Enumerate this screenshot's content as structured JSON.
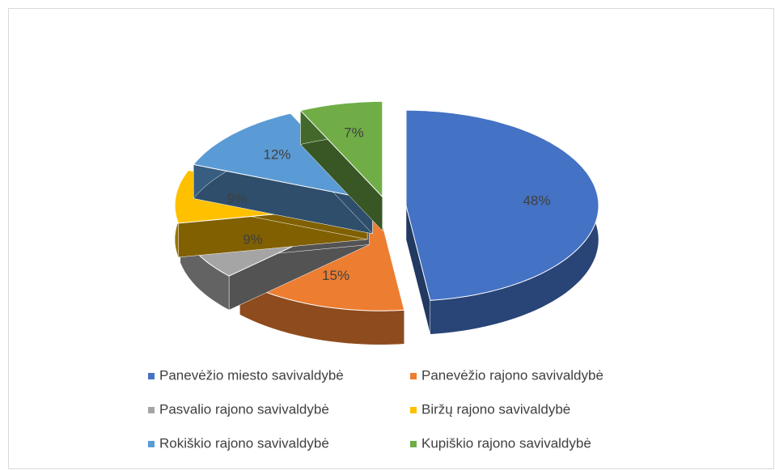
{
  "chart_data": {
    "type": "pie",
    "categories": [
      "Panevėžio miesto savivaldybė",
      "Panevėžio rajono savivaldybė",
      "Pasvalio rajono savivaldybė",
      "Biržų rajono savivaldybė",
      "Rokiškio rajono savivaldybė",
      "Kupiškio rajono savivaldybė"
    ],
    "values": [
      48,
      15,
      9,
      9,
      12,
      7
    ],
    "value_labels": [
      "48%",
      "15%",
      "9%",
      "9%",
      "12%",
      "7%"
    ],
    "colors": [
      "#4472c4",
      "#ed7d31",
      "#a5a5a5",
      "#ffc000",
      "#5b9bd5",
      "#70ad47"
    ],
    "legend": "bottom"
  }
}
